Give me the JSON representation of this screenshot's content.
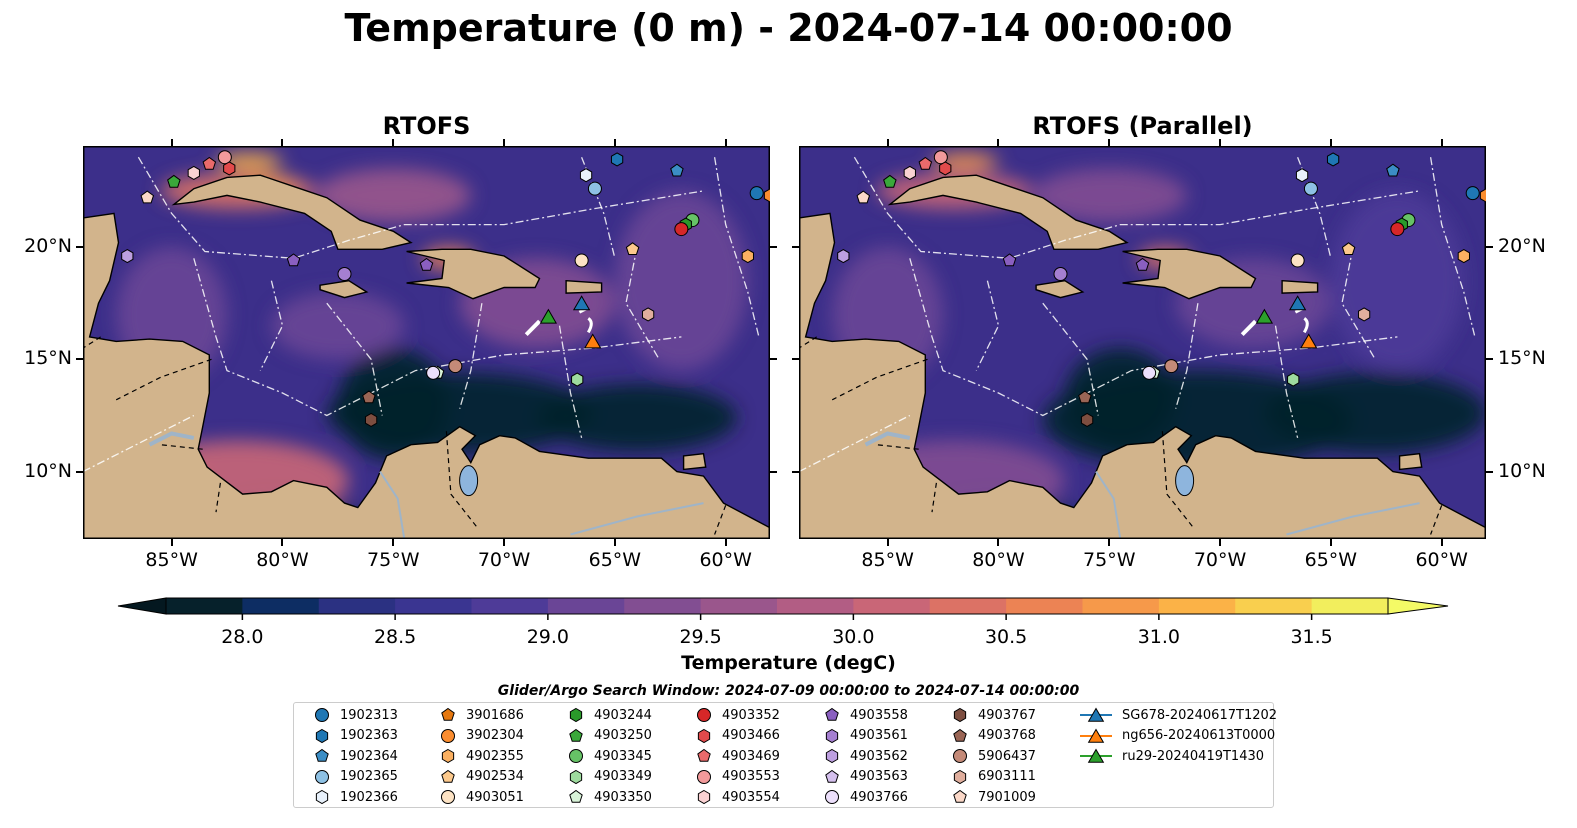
{
  "title": "Temperature (0 m) - 2024-07-14 00:00:00",
  "panels": [
    {
      "title": "RTOFS"
    },
    {
      "title": "RTOFS (Parallel)"
    }
  ],
  "map": {
    "lon_range": [
      -89,
      -58
    ],
    "lat_range": [
      7,
      24.5
    ],
    "lon_ticks": [
      "85°W",
      "80°W",
      "75°W",
      "70°W",
      "65°W",
      "60°W"
    ],
    "lat_ticks": [
      "20°N",
      "15°N",
      "10°N"
    ],
    "land_color": "#d2b48c",
    "ocean_color": "#3c2f8a"
  },
  "colorbar": {
    "label": "Temperature (degC)",
    "ticks": [
      "28.0",
      "28.5",
      "29.0",
      "29.5",
      "30.0",
      "30.5",
      "31.0",
      "31.5"
    ],
    "range": [
      27.75,
      31.75
    ],
    "colors": [
      "#06212b",
      "#0d2d63",
      "#2b3182",
      "#3a3591",
      "#4e3b98",
      "#6a4596",
      "#824e92",
      "#9a568c",
      "#b25d84",
      "#c96677",
      "#dc7265",
      "#ec8354",
      "#f6994a",
      "#fbb247",
      "#f9cf4e",
      "#f2ee5d"
    ]
  },
  "search_window": "Glider/Argo Search Window: 2024-07-09 00:00:00 to 2024-07-14 00:00:00",
  "legend": [
    {
      "label": "1902313",
      "shape": "circle",
      "color": "#1f77b4"
    },
    {
      "label": "1902363",
      "shape": "hexagon",
      "color": "#1f77b4"
    },
    {
      "label": "1902364",
      "shape": "pentagon",
      "color": "#3b8dc5"
    },
    {
      "label": "1902365",
      "shape": "circle",
      "color": "#8ec1e4"
    },
    {
      "label": "1902366",
      "shape": "hexagon",
      "color": "#e8f1fb"
    },
    {
      "label": "3901686",
      "shape": "pentagon",
      "color": "#e6780f"
    },
    {
      "label": "3902304",
      "shape": "circle",
      "color": "#fb8d2f"
    },
    {
      "label": "4902355",
      "shape": "hexagon",
      "color": "#fbb061"
    },
    {
      "label": "4902534",
      "shape": "pentagon",
      "color": "#fcc98c"
    },
    {
      "label": "4903051",
      "shape": "circle",
      "color": "#fde3c4"
    },
    {
      "label": "4903244",
      "shape": "hexagon",
      "color": "#2a9a2a"
    },
    {
      "label": "4903250",
      "shape": "pentagon",
      "color": "#3aa83a"
    },
    {
      "label": "4903345",
      "shape": "circle",
      "color": "#66c266"
    },
    {
      "label": "4903349",
      "shape": "hexagon",
      "color": "#9edb9e"
    },
    {
      "label": "4903350",
      "shape": "pentagon",
      "color": "#d8f3d8"
    },
    {
      "label": "4903352",
      "shape": "circle",
      "color": "#d62728"
    },
    {
      "label": "4903466",
      "shape": "hexagon",
      "color": "#e24a4b"
    },
    {
      "label": "4903469",
      "shape": "pentagon",
      "color": "#ea6a6b"
    },
    {
      "label": "4903553",
      "shape": "circle",
      "color": "#f29a9b"
    },
    {
      "label": "4903554",
      "shape": "hexagon",
      "color": "#fad2d3"
    },
    {
      "label": "4903558",
      "shape": "pentagon",
      "color": "#8a5fc0"
    },
    {
      "label": "4903561",
      "shape": "hexagon",
      "color": "#a57fd1"
    },
    {
      "label": "4903562",
      "shape": "hexagon",
      "color": "#bd9fe0"
    },
    {
      "label": "4903563",
      "shape": "pentagon",
      "color": "#d5c0ee"
    },
    {
      "label": "4903766",
      "shape": "circle",
      "color": "#ecdffb"
    },
    {
      "label": "4903767",
      "shape": "hexagon",
      "color": "#7d4e40"
    },
    {
      "label": "4903768",
      "shape": "pentagon",
      "color": "#9a6555"
    },
    {
      "label": "5906437",
      "shape": "circle",
      "color": "#c48a78"
    },
    {
      "label": "6903111",
      "shape": "hexagon",
      "color": "#e0ae9d"
    },
    {
      "label": "7901009",
      "shape": "pentagon",
      "color": "#fbd8c8"
    },
    {
      "label": "SG678-20240617T1202",
      "shape": "triangle-line",
      "color": "#1f77b4"
    },
    {
      "label": "ng656-20240613T0000",
      "shape": "triangle-line",
      "color": "#ff7f0e"
    },
    {
      "label": "ru29-20240419T1430",
      "shape": "triangle-line",
      "color": "#2ca02c"
    }
  ],
  "markers": [
    {
      "lon": -84.9,
      "lat": 22.9,
      "shape": "pentagon",
      "color": "#3aa83a"
    },
    {
      "lon": -84.0,
      "lat": 23.3,
      "shape": "hexagon",
      "color": "#fad2d3"
    },
    {
      "lon": -83.3,
      "lat": 23.7,
      "shape": "pentagon",
      "color": "#ea6a6b"
    },
    {
      "lon": -82.6,
      "lat": 24.0,
      "shape": "circle",
      "color": "#f29a9b"
    },
    {
      "lon": -82.4,
      "lat": 23.5,
      "shape": "hexagon",
      "color": "#e24a4b"
    },
    {
      "lon": -86.1,
      "lat": 22.2,
      "shape": "pentagon",
      "color": "#fbd8c8"
    },
    {
      "lon": -87.0,
      "lat": 19.6,
      "shape": "hexagon",
      "color": "#bd9fe0"
    },
    {
      "lon": -79.5,
      "lat": 19.4,
      "shape": "pentagon",
      "color": "#8a5fc0"
    },
    {
      "lon": -77.2,
      "lat": 18.8,
      "shape": "circle",
      "color": "#a57fd1"
    },
    {
      "lon": -73.5,
      "lat": 19.2,
      "shape": "pentagon",
      "color": "#8a5fc0"
    },
    {
      "lon": -66.3,
      "lat": 23.2,
      "shape": "hexagon",
      "color": "#e8f1fb"
    },
    {
      "lon": -64.9,
      "lat": 23.9,
      "shape": "hexagon",
      "color": "#1f77b4"
    },
    {
      "lon": -62.2,
      "lat": 23.4,
      "shape": "pentagon",
      "color": "#3b8dc5"
    },
    {
      "lon": -65.9,
      "lat": 22.6,
      "shape": "circle",
      "color": "#8ec1e4"
    },
    {
      "lon": -58.6,
      "lat": 22.4,
      "shape": "circle",
      "color": "#1f77b4"
    },
    {
      "lon": -58.0,
      "lat": 22.3,
      "shape": "hexagon",
      "color": "#fb8d2f"
    },
    {
      "lon": -61.5,
      "lat": 21.2,
      "shape": "circle",
      "color": "#66c266"
    },
    {
      "lon": -61.8,
      "lat": 21.0,
      "shape": "hexagon",
      "color": "#2a9a2a"
    },
    {
      "lon": -62.0,
      "lat": 20.8,
      "shape": "circle",
      "color": "#d62728"
    },
    {
      "lon": -64.2,
      "lat": 19.9,
      "shape": "pentagon",
      "color": "#fcc98c"
    },
    {
      "lon": -59.0,
      "lat": 19.6,
      "shape": "hexagon",
      "color": "#fbb061"
    },
    {
      "lon": -66.5,
      "lat": 19.4,
      "shape": "circle",
      "color": "#fde3c4"
    },
    {
      "lon": -63.5,
      "lat": 17.0,
      "shape": "hexagon",
      "color": "#e0ae9d"
    },
    {
      "lon": -72.2,
      "lat": 14.7,
      "shape": "circle",
      "color": "#c48a78"
    },
    {
      "lon": -73.0,
      "lat": 14.4,
      "shape": "pentagon",
      "color": "#d8f3d8"
    },
    {
      "lon": -73.2,
      "lat": 14.4,
      "shape": "circle",
      "color": "#ecdffb"
    },
    {
      "lon": -66.7,
      "lat": 14.1,
      "shape": "hexagon",
      "color": "#9edb9e"
    },
    {
      "lon": -76.1,
      "lat": 13.3,
      "shape": "pentagon",
      "color": "#9a6555"
    },
    {
      "lon": -76.0,
      "lat": 12.3,
      "shape": "hexagon",
      "color": "#7d4e40"
    },
    {
      "lon": -66.5,
      "lat": 17.5,
      "shape": "triangle",
      "color": "#1f77b4"
    },
    {
      "lon": -66.0,
      "lat": 15.8,
      "shape": "triangle",
      "color": "#ff7f0e"
    },
    {
      "lon": -68.0,
      "lat": 16.9,
      "shape": "triangle",
      "color": "#2ca02c"
    }
  ]
}
